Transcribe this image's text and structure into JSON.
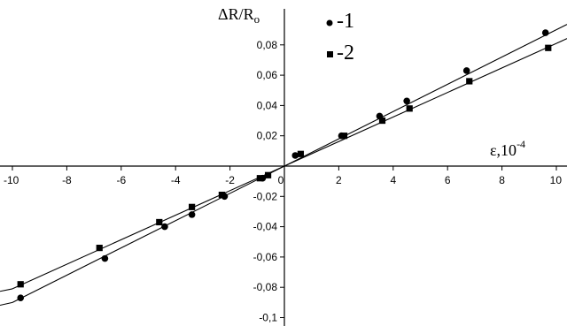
{
  "chart_data": {
    "type": "scatter",
    "title": "",
    "xlabel": "ε,10",
    "xlabel_exp": "-4",
    "ylabel": "ΔR/R",
    "ylabel_sub": "o",
    "xlim": [
      -10,
      10
    ],
    "ylim": [
      -0.1,
      0.1
    ],
    "x_ticks": [
      "-10",
      "-8",
      "-6",
      "-4",
      "-2",
      "0",
      "2",
      "4",
      "6",
      "8",
      "10"
    ],
    "y_ticks": [
      "-0,1",
      "-0,08",
      "-0,06",
      "-0,04",
      "-0,02",
      "0,02",
      "0,04",
      "0,06",
      "0,08"
    ],
    "grid": false,
    "legend_position": "top-center",
    "series": [
      {
        "name": "-1",
        "marker": "circle",
        "x": [
          -9.7,
          -6.6,
          -4.4,
          -3.4,
          -2.2,
          -0.8,
          0.4,
          2.1,
          3.5,
          4.5,
          6.7,
          9.6
        ],
        "y": [
          -0.087,
          -0.061,
          -0.04,
          -0.032,
          -0.02,
          -0.008,
          0.007,
          0.02,
          0.033,
          0.043,
          0.063,
          0.088
        ],
        "fit": [
          -0.09,
          0.09
        ]
      },
      {
        "name": "-2",
        "marker": "square",
        "x": [
          -9.7,
          -6.8,
          -4.6,
          -3.4,
          -2.3,
          -0.9,
          -0.6,
          0.6,
          2.2,
          3.6,
          4.6,
          6.8,
          9.7
        ],
        "y": [
          -0.078,
          -0.054,
          -0.037,
          -0.027,
          -0.019,
          -0.008,
          -0.006,
          0.008,
          0.02,
          0.03,
          0.038,
          0.056,
          0.078
        ],
        "fit": [
          -0.081,
          0.081
        ]
      }
    ]
  }
}
